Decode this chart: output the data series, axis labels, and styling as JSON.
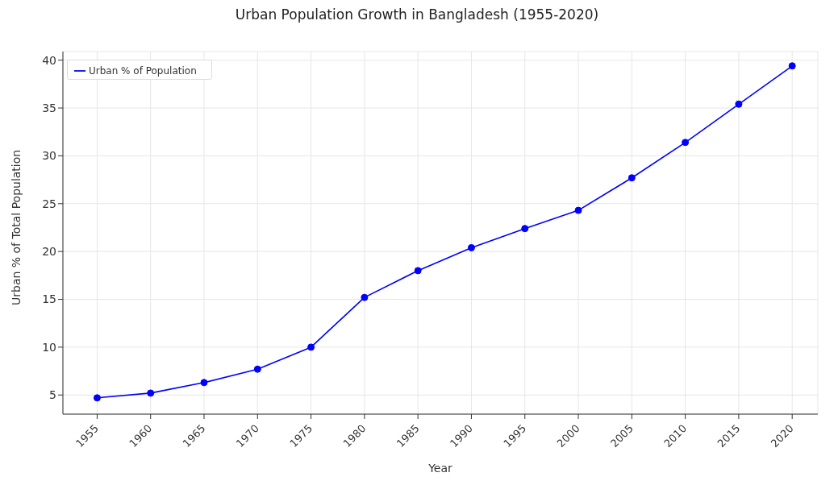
{
  "chart_data": {
    "type": "line",
    "title": "Urban Population Growth in Bangladesh (1955-2020)",
    "xlabel": "Year",
    "ylabel": "Urban % of Total Population",
    "x": [
      1955,
      1960,
      1965,
      1970,
      1975,
      1980,
      1985,
      1990,
      1995,
      2000,
      2005,
      2010,
      2015,
      2020
    ],
    "series": [
      {
        "name": "Urban % of Population",
        "color": "#0000ff",
        "values": [
          4.7,
          5.2,
          6.3,
          7.7,
          10.0,
          15.2,
          18.0,
          20.4,
          22.4,
          24.3,
          27.7,
          31.4,
          35.4,
          39.4
        ]
      }
    ],
    "xlim": [
      1951.8,
      2022.4
    ],
    "xticks": [
      1955,
      1960,
      1965,
      1970,
      1975,
      1980,
      1985,
      1990,
      1995,
      2000,
      2005,
      2010,
      2015,
      2020
    ],
    "ylim": [
      3,
      40.9
    ],
    "yticks": [
      5,
      10,
      15,
      20,
      25,
      30,
      35,
      40
    ],
    "grid": true,
    "legend": "top left",
    "marker": "circle",
    "line_style": "solid"
  }
}
